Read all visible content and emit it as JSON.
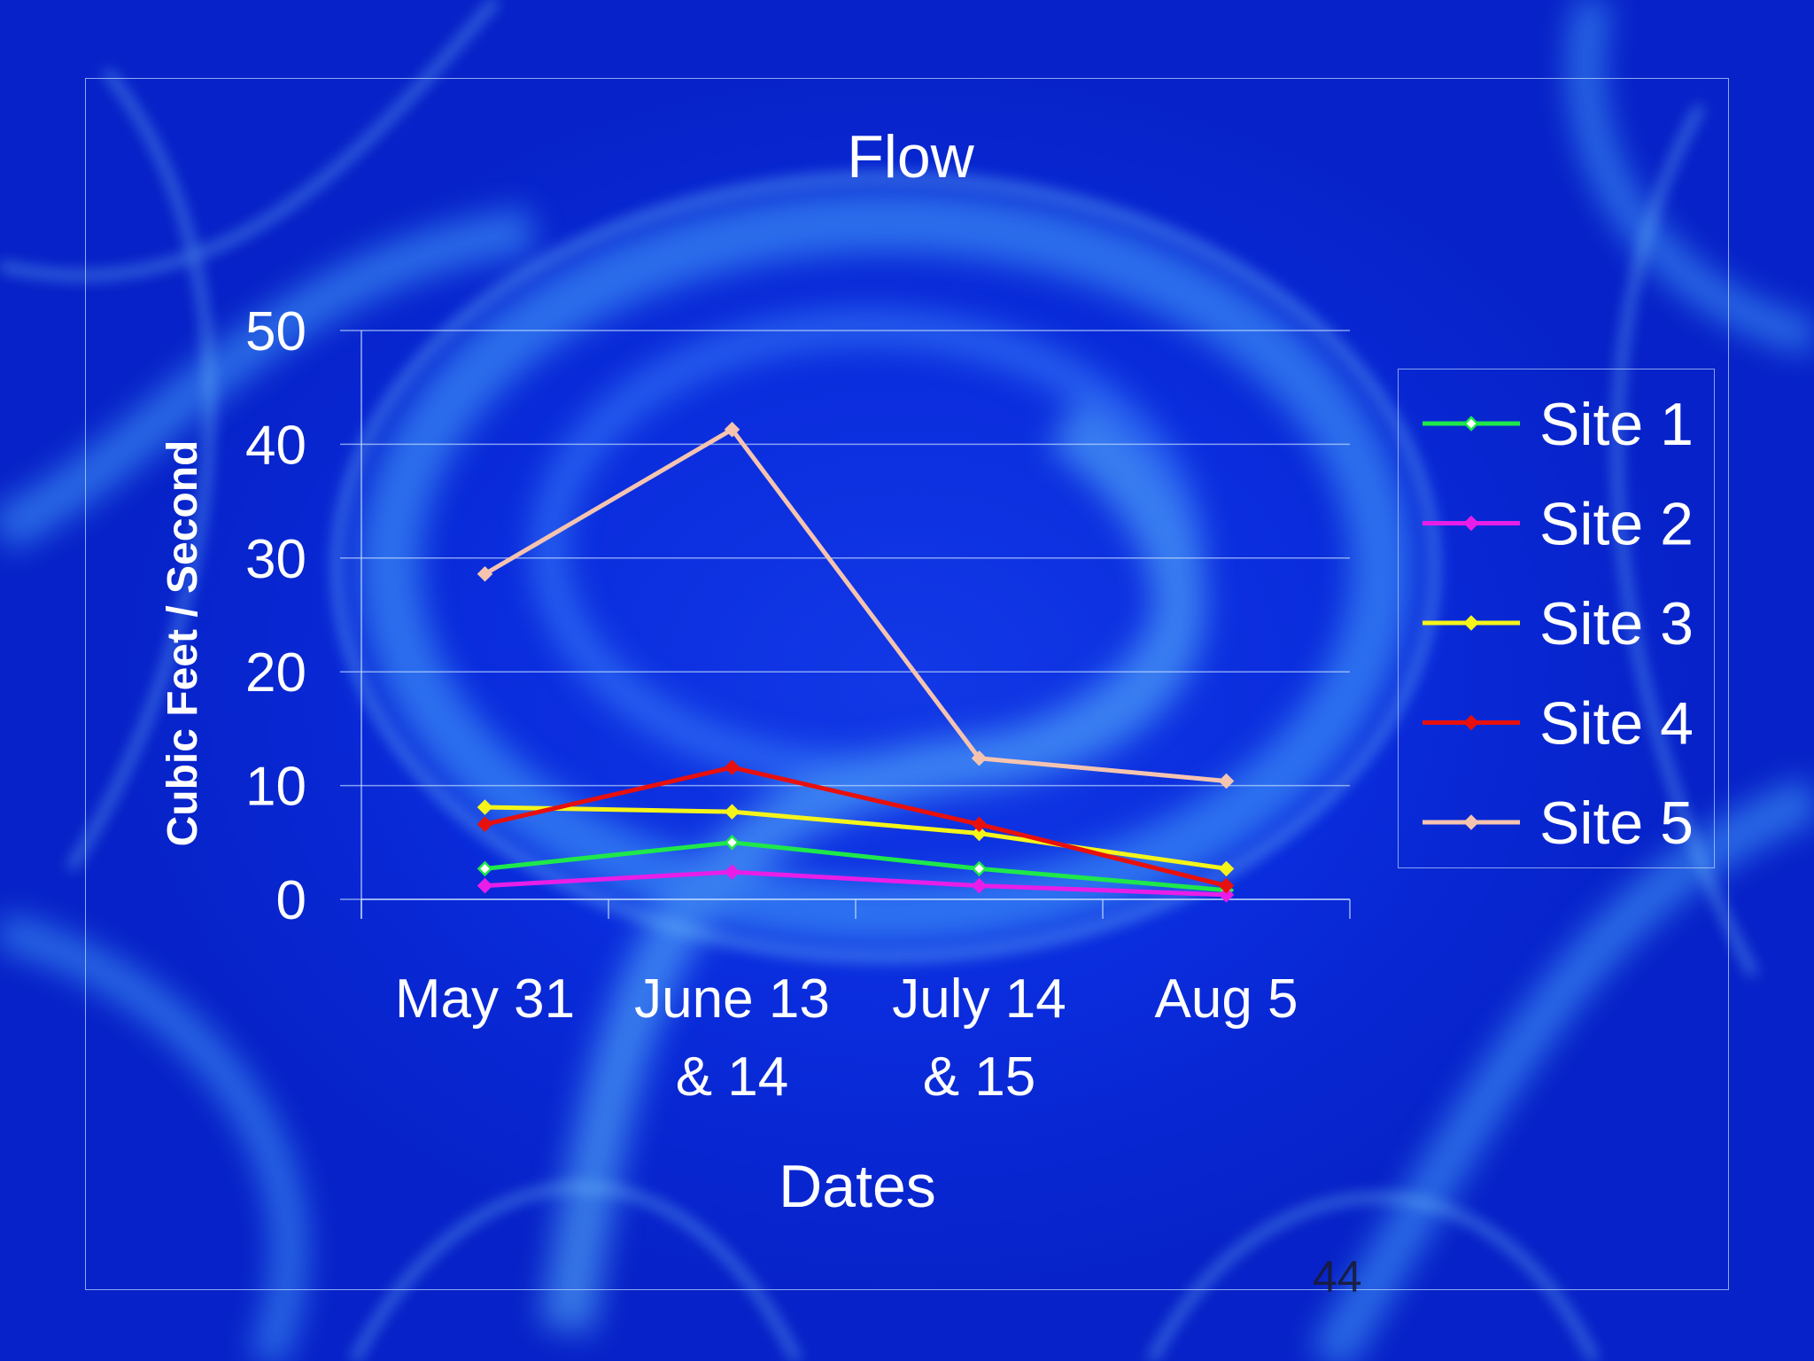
{
  "slide": {
    "page_number": "44"
  },
  "chart_data": {
    "type": "line",
    "title": "Flow",
    "xlabel": "Dates",
    "ylabel": "Cubic Feet / Second",
    "ylim": [
      0,
      50
    ],
    "yticks": [
      0,
      10,
      20,
      30,
      40,
      50
    ],
    "grid": true,
    "legend_position": "right",
    "categories": [
      [
        "May 31"
      ],
      [
        "June 13",
        "& 14"
      ],
      [
        "July 14",
        "& 15"
      ],
      [
        "Aug 5"
      ]
    ],
    "series": [
      {
        "name": "Site 1",
        "color": "#1ee84a",
        "values": [
          2.7,
          5.0,
          2.7,
          0.8
        ]
      },
      {
        "name": "Site 2",
        "color": "#e81ee8",
        "values": [
          1.2,
          2.4,
          1.2,
          0.4
        ]
      },
      {
        "name": "Site 3",
        "color": "#f5f51a",
        "values": [
          8.1,
          7.7,
          5.8,
          2.7
        ]
      },
      {
        "name": "Site 4",
        "color": "#e8100c",
        "values": [
          6.6,
          11.6,
          6.6,
          1.2
        ]
      },
      {
        "name": "Site 5",
        "color": "#f5c4b0",
        "values": [
          28.6,
          41.3,
          12.4,
          10.4
        ]
      }
    ]
  }
}
